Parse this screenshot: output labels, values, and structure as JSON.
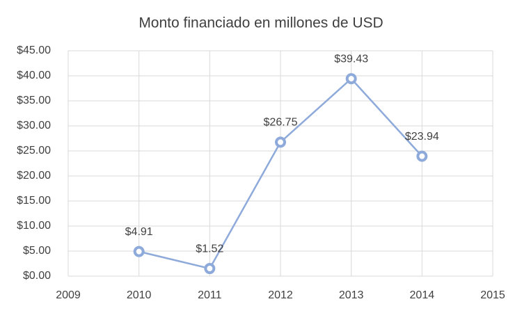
{
  "chart_data": {
    "type": "line",
    "title": "Monto financiado en millones de USD",
    "x": [
      2010,
      2011,
      2012,
      2013,
      2014
    ],
    "series": [
      {
        "color": "#8eaadb",
        "values": [
          4.91,
          1.52,
          26.75,
          39.43,
          23.94
        ],
        "value_labels": [
          "$4.91",
          "$1.52",
          "$26.75",
          "$39.43",
          "$23.94"
        ]
      }
    ],
    "xlim": [
      2009,
      2015
    ],
    "xticks": [
      2009,
      2010,
      2011,
      2012,
      2013,
      2014,
      2015
    ],
    "ylim": [
      0,
      45
    ],
    "yticks": [
      {
        "value": 0,
        "label": "$0.00"
      },
      {
        "value": 5,
        "label": "$5.00"
      },
      {
        "value": 10,
        "label": "$10.00"
      },
      {
        "value": 15,
        "label": "$15.00"
      },
      {
        "value": 20,
        "label": "$20.00"
      },
      {
        "value": 25,
        "label": "$25.00"
      },
      {
        "value": 30,
        "label": "$30.00"
      },
      {
        "value": 35,
        "label": "$35.00"
      },
      {
        "value": 40,
        "label": "$40.00"
      },
      {
        "value": 45,
        "label": "$45.00"
      }
    ],
    "grid": true
  }
}
